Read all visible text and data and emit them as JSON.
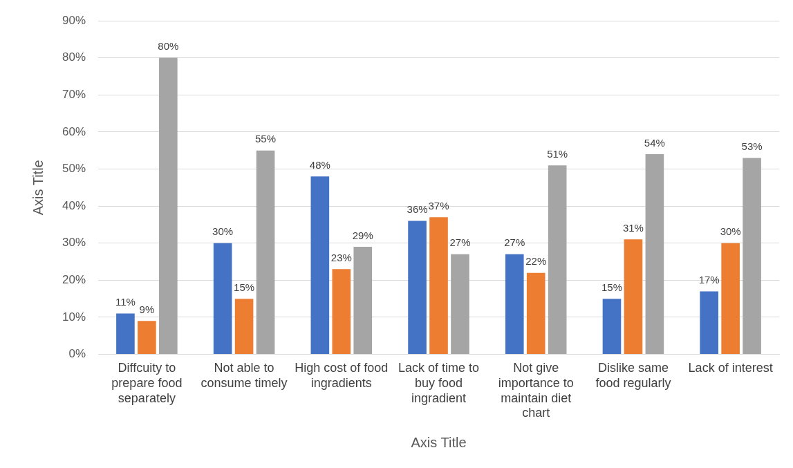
{
  "chart_data": {
    "type": "bar",
    "xlabel": "Axis Title",
    "ylabel": "Axis Title",
    "categories": [
      "Diffcuity to prepare food separately",
      "Not able to consume timely",
      "High cost of food ingradients",
      "Lack of time to buy food ingradient",
      "Not give importance to maintain diet chart",
      "Dislike same food regularly",
      "Lack of interest"
    ],
    "series": [
      {
        "color": "#4472c4",
        "values": [
          11,
          30,
          48,
          36,
          27,
          15,
          17
        ],
        "value_labels": [
          "11%",
          "30%",
          "48%",
          "36%",
          "27%",
          "15%",
          "17%"
        ]
      },
      {
        "color": "#ed7d31",
        "values": [
          9,
          15,
          23,
          37,
          22,
          31,
          30
        ],
        "value_labels": [
          "9%",
          "15%",
          "23%",
          "37%",
          "22%",
          "31%",
          "30%"
        ]
      },
      {
        "color": "#a5a5a5",
        "values": [
          80,
          55,
          29,
          27,
          51,
          54,
          53
        ],
        "value_labels": [
          "80%",
          "55%",
          "29%",
          "27%",
          "51%",
          "54%",
          "53%"
        ]
      }
    ],
    "ylim": [
      0,
      90
    ],
    "yticks": [
      {
        "value": 0,
        "label": "0%"
      },
      {
        "value": 10,
        "label": "10%"
      },
      {
        "value": 20,
        "label": "20%"
      },
      {
        "value": 30,
        "label": "30%"
      },
      {
        "value": 40,
        "label": "40%"
      },
      {
        "value": 50,
        "label": "50%"
      },
      {
        "value": 60,
        "label": "60%"
      },
      {
        "value": 70,
        "label": "70%"
      },
      {
        "value": 80,
        "label": "80%"
      },
      {
        "value": 90,
        "label": "90%"
      }
    ],
    "grid": "y",
    "legend": false
  }
}
